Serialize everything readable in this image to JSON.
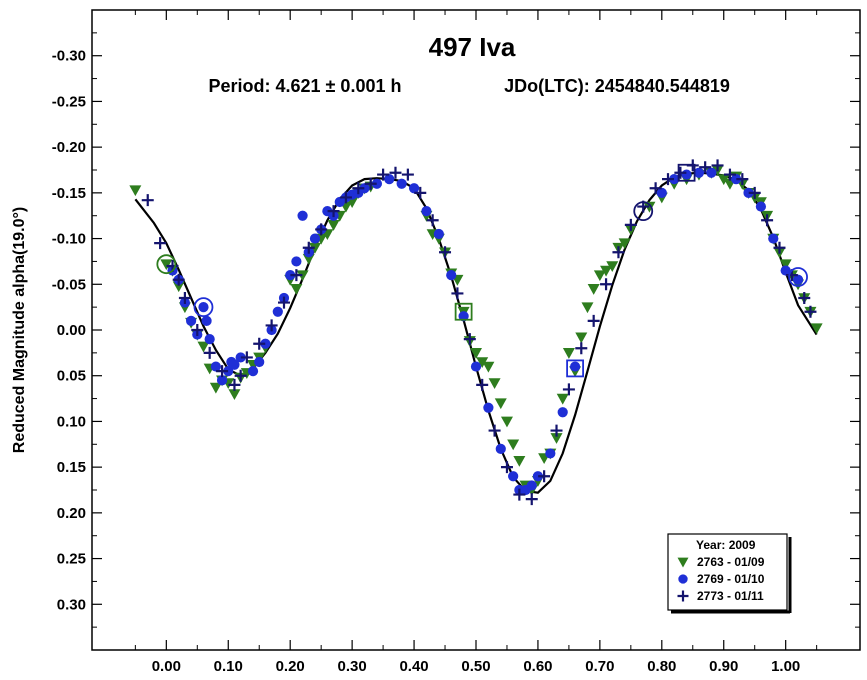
{
  "chart_data": {
    "type": "scatter",
    "title": "497 Iva",
    "subtitle_period": "Period: 4.621 ± 0.001 h",
    "subtitle_epoch": "JDo(LTC): 2454840.544819",
    "ylabel": "Reduced Magnitude alpha(19.0°)",
    "xlabel": "",
    "xlim": [
      -0.12,
      1.12
    ],
    "ylim": [
      -0.35,
      0.35
    ],
    "y_inverted": true,
    "grid": false,
    "x_ticks": [
      "0.00",
      "0.10",
      "0.20",
      "0.30",
      "0.40",
      "0.50",
      "0.60",
      "0.70",
      "0.80",
      "0.90",
      "1.00"
    ],
    "x_tick_values": [
      0.0,
      0.1,
      0.2,
      0.3,
      0.4,
      0.5,
      0.6,
      0.7,
      0.8,
      0.9,
      1.0
    ],
    "y_ticks": [
      "-0.30",
      "-0.25",
      "-0.20",
      "-0.15",
      "-0.10",
      "-0.05",
      "0.00",
      "0.05",
      "0.10",
      "0.15",
      "0.20",
      "0.25",
      "0.30"
    ],
    "y_tick_values": [
      -0.3,
      -0.25,
      -0.2,
      -0.15,
      -0.1,
      -0.05,
      0.0,
      0.05,
      0.1,
      0.15,
      0.2,
      0.25,
      0.3
    ],
    "legend": {
      "title": "Year: 2009",
      "placement": "bottom-right",
      "entries": [
        "2763 - 01/09",
        "2769 - 01/10",
        "2773 - 01/11"
      ]
    },
    "fit_curve": {
      "x": [
        -0.05,
        -0.02,
        0.0,
        0.02,
        0.04,
        0.06,
        0.08,
        0.1,
        0.12,
        0.14,
        0.16,
        0.18,
        0.2,
        0.22,
        0.24,
        0.26,
        0.28,
        0.3,
        0.32,
        0.34,
        0.36,
        0.38,
        0.4,
        0.42,
        0.44,
        0.46,
        0.48,
        0.5,
        0.52,
        0.54,
        0.56,
        0.58,
        0.6,
        0.62,
        0.64,
        0.66,
        0.68,
        0.7,
        0.72,
        0.74,
        0.76,
        0.78,
        0.8,
        0.82,
        0.84,
        0.86,
        0.88,
        0.9,
        0.92,
        0.94,
        0.96,
        0.98,
        1.0,
        1.02,
        1.05
      ],
      "y": [
        -0.143,
        -0.117,
        -0.095,
        -0.066,
        -0.035,
        -0.004,
        0.022,
        0.043,
        0.05,
        0.042,
        0.025,
        0.004,
        -0.024,
        -0.056,
        -0.09,
        -0.12,
        -0.143,
        -0.158,
        -0.165,
        -0.166,
        -0.165,
        -0.163,
        -0.155,
        -0.133,
        -0.1,
        -0.059,
        -0.011,
        0.04,
        0.088,
        0.13,
        0.161,
        0.176,
        0.178,
        0.165,
        0.135,
        0.093,
        0.045,
        -0.004,
        -0.049,
        -0.088,
        -0.119,
        -0.142,
        -0.158,
        -0.167,
        -0.171,
        -0.172,
        -0.171,
        -0.169,
        -0.164,
        -0.153,
        -0.132,
        -0.101,
        -0.063,
        -0.027,
        0.005
      ]
    },
    "series": [
      {
        "name": "2763 - 01/09",
        "marker": "triangle-down",
        "color": "#2e7d1e",
        "x": [
          -0.05,
          0.0,
          0.01,
          0.02,
          0.03,
          0.04,
          0.05,
          0.06,
          0.07,
          0.08,
          0.09,
          0.1,
          0.11,
          0.12,
          0.13,
          0.14,
          0.15,
          0.16,
          0.2,
          0.21,
          0.22,
          0.23,
          0.24,
          0.25,
          0.26,
          0.27,
          0.28,
          0.29,
          0.3,
          0.31,
          0.32,
          0.33,
          0.42,
          0.43,
          0.44,
          0.45,
          0.46,
          0.47,
          0.48,
          0.49,
          0.5,
          0.51,
          0.52,
          0.53,
          0.54,
          0.55,
          0.56,
          0.57,
          0.58,
          0.59,
          0.6,
          0.61,
          0.62,
          0.63,
          0.64,
          0.65,
          0.66,
          0.67,
          0.68,
          0.69,
          0.7,
          0.71,
          0.72,
          0.73,
          0.74,
          0.75,
          0.78,
          0.8,
          0.82,
          0.84,
          0.86,
          0.88,
          0.89,
          0.9,
          0.91,
          0.92,
          0.93,
          0.94,
          0.95,
          0.96,
          0.97,
          0.98,
          0.99,
          1.0,
          1.01,
          1.02,
          1.03,
          1.04,
          1.05
        ],
        "y": [
          -0.153,
          -0.072,
          -0.065,
          -0.048,
          -0.025,
          -0.008,
          0.005,
          0.018,
          0.042,
          0.063,
          0.055,
          0.058,
          0.07,
          0.052,
          0.047,
          0.038,
          0.03,
          0.019,
          -0.055,
          -0.045,
          -0.06,
          -0.078,
          -0.09,
          -0.1,
          -0.105,
          -0.115,
          -0.125,
          -0.135,
          -0.14,
          -0.15,
          -0.155,
          -0.157,
          -0.125,
          -0.105,
          -0.1,
          -0.085,
          -0.062,
          -0.055,
          -0.02,
          0.012,
          0.025,
          0.035,
          0.04,
          0.058,
          0.08,
          0.1,
          0.125,
          0.143,
          0.17,
          0.175,
          0.165,
          0.14,
          0.135,
          0.118,
          0.075,
          0.025,
          0.045,
          0.008,
          -0.025,
          -0.045,
          -0.06,
          -0.065,
          -0.07,
          -0.09,
          -0.095,
          -0.11,
          -0.135,
          -0.145,
          -0.16,
          -0.165,
          -0.17,
          -0.172,
          -0.175,
          -0.165,
          -0.16,
          -0.168,
          -0.16,
          -0.15,
          -0.145,
          -0.14,
          -0.125,
          -0.1,
          -0.085,
          -0.072,
          -0.06,
          -0.05,
          -0.035,
          -0.02,
          -0.002
        ]
      },
      {
        "name": "2769 - 01/10",
        "marker": "circle",
        "color": "#1f2fd6",
        "x": [
          0.01,
          0.02,
          0.03,
          0.04,
          0.05,
          0.06,
          0.065,
          0.07,
          0.08,
          0.09,
          0.1,
          0.105,
          0.11,
          0.12,
          0.14,
          0.15,
          0.16,
          0.17,
          0.18,
          0.19,
          0.2,
          0.21,
          0.22,
          0.23,
          0.24,
          0.25,
          0.26,
          0.27,
          0.28,
          0.29,
          0.3,
          0.31,
          0.32,
          0.34,
          0.36,
          0.38,
          0.4,
          0.42,
          0.44,
          0.46,
          0.48,
          0.5,
          0.52,
          0.54,
          0.56,
          0.57,
          0.58,
          0.59,
          0.6,
          0.62,
          0.64,
          0.66,
          0.8,
          0.82,
          0.84,
          0.86,
          0.88,
          0.92,
          0.94,
          0.96,
          0.98,
          1.0,
          1.02
        ],
        "y": [
          -0.065,
          -0.055,
          -0.03,
          -0.01,
          0.005,
          -0.025,
          -0.01,
          0.01,
          0.04,
          0.055,
          0.045,
          0.035,
          0.038,
          0.03,
          0.045,
          0.035,
          0.015,
          0.0,
          -0.02,
          -0.035,
          -0.06,
          -0.075,
          -0.125,
          -0.085,
          -0.1,
          -0.11,
          -0.13,
          -0.125,
          -0.14,
          -0.145,
          -0.148,
          -0.15,
          -0.155,
          -0.16,
          -0.165,
          -0.16,
          -0.155,
          -0.13,
          -0.105,
          -0.06,
          -0.015,
          0.04,
          0.085,
          0.13,
          0.16,
          0.175,
          0.175,
          0.17,
          0.16,
          0.135,
          0.09,
          0.04,
          -0.15,
          -0.165,
          -0.17,
          -0.172,
          -0.172,
          -0.165,
          -0.15,
          -0.135,
          -0.1,
          -0.065,
          -0.055
        ]
      },
      {
        "name": "2773 - 01/11",
        "marker": "plus",
        "color": "#14146e",
        "x": [
          -0.03,
          -0.01,
          0.01,
          0.02,
          0.03,
          0.05,
          0.07,
          0.09,
          0.11,
          0.12,
          0.13,
          0.15,
          0.17,
          0.19,
          0.21,
          0.23,
          0.25,
          0.27,
          0.29,
          0.31,
          0.33,
          0.35,
          0.37,
          0.39,
          0.41,
          0.43,
          0.45,
          0.47,
          0.49,
          0.51,
          0.53,
          0.55,
          0.57,
          0.59,
          0.61,
          0.63,
          0.65,
          0.67,
          0.69,
          0.71,
          0.73,
          0.75,
          0.77,
          0.79,
          0.81,
          0.83,
          0.85,
          0.87,
          0.89,
          0.91,
          0.93,
          0.95,
          0.97,
          0.99,
          1.01,
          1.03,
          1.04
        ],
        "y": [
          -0.142,
          -0.095,
          -0.07,
          -0.055,
          -0.035,
          0.0,
          0.025,
          0.045,
          0.06,
          0.05,
          0.03,
          0.015,
          -0.005,
          -0.03,
          -0.06,
          -0.09,
          -0.11,
          -0.13,
          -0.145,
          -0.155,
          -0.16,
          -0.17,
          -0.172,
          -0.17,
          -0.15,
          -0.12,
          -0.085,
          -0.04,
          0.01,
          0.06,
          0.11,
          0.15,
          0.18,
          0.185,
          0.16,
          0.11,
          0.065,
          0.02,
          -0.01,
          -0.05,
          -0.085,
          -0.115,
          -0.135,
          -0.155,
          -0.165,
          -0.172,
          -0.18,
          -0.178,
          -0.18,
          -0.17,
          -0.165,
          -0.15,
          -0.12,
          -0.09,
          -0.06,
          -0.035,
          -0.02
        ]
      }
    ],
    "highlight_markers": [
      {
        "x": 0.0,
        "y": -0.072,
        "shape": "circle",
        "color": "#2e7d1e"
      },
      {
        "x": 0.06,
        "y": -0.025,
        "shape": "circle",
        "color": "#1f2fd6"
      },
      {
        "x": 0.77,
        "y": -0.13,
        "shape": "circle",
        "color": "#14146e"
      },
      {
        "x": 0.48,
        "y": -0.02,
        "shape": "square",
        "color": "#2e7d1e"
      },
      {
        "x": 0.66,
        "y": 0.042,
        "shape": "square",
        "color": "#1f2fd6"
      },
      {
        "x": 0.84,
        "y": -0.172,
        "shape": "square",
        "color": "#14146e"
      },
      {
        "x": 1.02,
        "y": -0.058,
        "shape": "circle",
        "color": "#1f2fd6"
      }
    ]
  }
}
